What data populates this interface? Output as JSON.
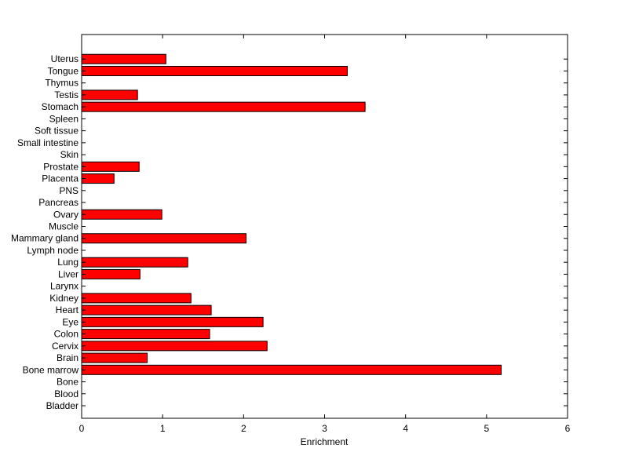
{
  "chart_data": {
    "type": "bar",
    "orientation": "horizontal",
    "title": "",
    "xlabel": "Enrichment",
    "ylabel": "",
    "xlim": [
      0,
      6
    ],
    "xticks": [
      0,
      1,
      2,
      3,
      4,
      5,
      6
    ],
    "grid": false,
    "bar_color": "#ff0000",
    "categories": [
      "Bladder",
      "Blood",
      "Bone",
      "Bone marrow",
      "Brain",
      "Cervix",
      "Colon",
      "Eye",
      "Heart",
      "Kidney",
      "Larynx",
      "Liver",
      "Lung",
      "Lymph node",
      "Mammary gland",
      "Muscle",
      "Ovary",
      "Pancreas",
      "PNS",
      "Placenta",
      "Prostate",
      "Skin",
      "Small intestine",
      "Soft tissue",
      "Spleen",
      "Stomach",
      "Testis",
      "Thymus",
      "Tongue",
      "Uterus"
    ],
    "values": [
      0,
      0,
      0,
      5.18,
      0.81,
      2.29,
      1.58,
      2.24,
      1.6,
      1.35,
      0,
      0.72,
      1.31,
      0,
      2.03,
      0,
      0.99,
      0,
      0,
      0.4,
      0.71,
      0,
      0,
      0,
      0,
      3.5,
      0.69,
      0,
      3.28,
      1.04
    ]
  }
}
